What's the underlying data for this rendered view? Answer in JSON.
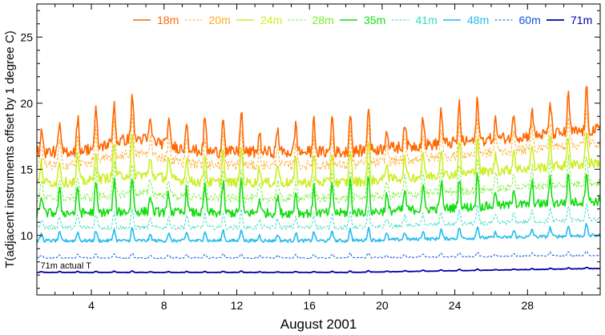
{
  "chart_data": {
    "type": "line",
    "xlabel": "August 2001",
    "ylabel": "T(adjacent instruments offset by 1 degree C)",
    "xlim": [
      1,
      32
    ],
    "ylim": [
      5.5,
      27.5
    ],
    "x_ticks": [
      4,
      8,
      12,
      16,
      20,
      24,
      28
    ],
    "y_ticks": [
      10,
      15,
      20,
      25
    ],
    "annotation": "71m actual T",
    "legend_position": "top",
    "series": [
      {
        "name": "18m",
        "color": "#ff6600",
        "dash": "solid",
        "width": 1.6,
        "base": 16.3,
        "trend": 1.7,
        "hump": 1.0,
        "spike": 3.6
      },
      {
        "name": "20m",
        "color": "#ffaa22",
        "dash": "dotted",
        "width": 1.0,
        "base": 15.3,
        "trend": 1.7,
        "hump": 0.9,
        "spike": 3.0
      },
      {
        "name": "24m",
        "color": "#ccee22",
        "dash": "solid",
        "width": 1.6,
        "base": 14.0,
        "trend": 1.5,
        "hump": 0.6,
        "spike": 3.0
      },
      {
        "name": "28m",
        "color": "#77ee33",
        "dash": "dotted",
        "width": 1.0,
        "base": 12.8,
        "trend": 1.2,
        "hump": 0.4,
        "spike": 2.6
      },
      {
        "name": "35m",
        "color": "#11dd11",
        "dash": "solid",
        "width": 1.6,
        "base": 11.7,
        "trend": 0.9,
        "hump": 0.1,
        "spike": 2.8
      },
      {
        "name": "41m",
        "color": "#33ddbb",
        "dash": "dotted",
        "width": 1.0,
        "base": 10.6,
        "trend": 0.6,
        "hump": 0.0,
        "spike": 1.4
      },
      {
        "name": "48m",
        "color": "#22bbee",
        "dash": "solid",
        "width": 1.6,
        "base": 9.6,
        "trend": 0.4,
        "hump": 0.0,
        "spike": 1.0
      },
      {
        "name": "60m",
        "color": "#1155dd",
        "dash": "dotted",
        "width": 1.0,
        "base": 8.3,
        "trend": 0.2,
        "hump": 0.0,
        "spike": 0.4
      },
      {
        "name": "71m",
        "color": "#0000aa",
        "dash": "solid",
        "width": 1.8,
        "base": 7.2,
        "trend": 0.3,
        "hump": 0.0,
        "spike": 0.12
      }
    ]
  }
}
